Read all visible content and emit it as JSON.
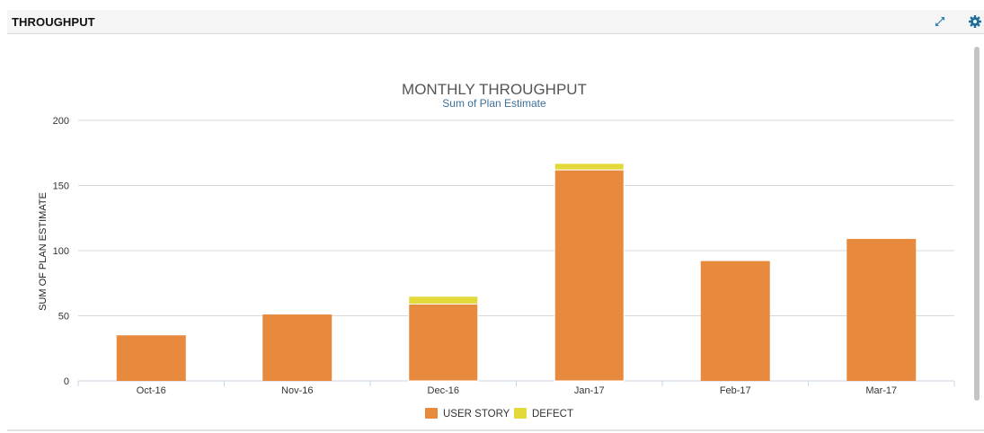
{
  "panel": {
    "title": "THROUGHPUT",
    "expand_icon": "expand-icon",
    "settings_icon": "gear-icon"
  },
  "colors": {
    "user_story": "#E88A3E",
    "defect": "#E3D93A",
    "icon": "#2a7fb2",
    "subtitle": "#3d6f9b"
  },
  "chart_data": {
    "type": "bar",
    "stacked": true,
    "title": "MONTHLY THROUGHPUT",
    "subtitle": "Sum of Plan Estimate",
    "xlabel": "",
    "ylabel": "SUM OF PLAN ESTIMATE",
    "ylim": [
      0,
      200
    ],
    "yticks": [
      0,
      50,
      100,
      150,
      200
    ],
    "grid": true,
    "legend_position": "bottom",
    "categories": [
      "Oct-16",
      "Nov-16",
      "Dec-16",
      "Jan-17",
      "Feb-17",
      "Mar-17"
    ],
    "series": [
      {
        "name": "USER STORY",
        "values": [
          35,
          51,
          59,
          162,
          92,
          109
        ]
      },
      {
        "name": "DEFECT",
        "values": [
          0,
          0,
          6,
          5,
          0,
          0
        ]
      }
    ]
  }
}
